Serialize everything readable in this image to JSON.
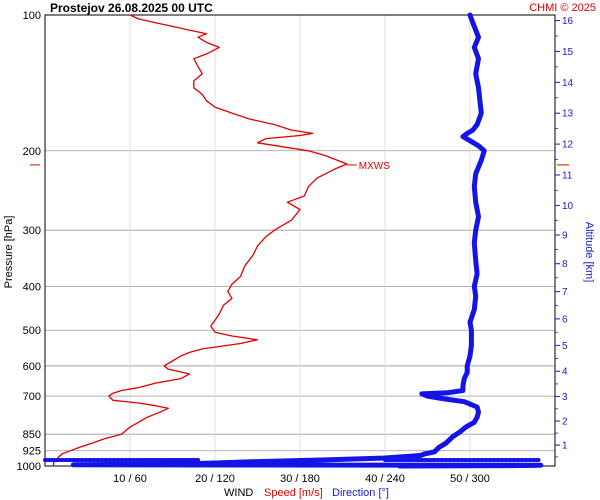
{
  "chart_data": {
    "type": "line",
    "title": "Prostejov    26.08.2025 00 UTC",
    "credit": "CHMI © 2025",
    "ylabel_left": "Pressure [hPa]",
    "ylabel_right": "Altitude [km]",
    "footer": {
      "wind": "WIND",
      "speed": "Speed [m/s]",
      "direction": "Direction [°]"
    },
    "pressure_ticks": [
      100,
      200,
      300,
      400,
      500,
      600,
      700,
      850,
      925,
      1000
    ],
    "pressure_range": [
      100,
      1000
    ],
    "altitude_ticks": [
      1,
      2,
      3,
      4,
      5,
      6,
      7,
      8,
      9,
      10,
      11,
      12,
      13,
      14,
      15,
      16
    ],
    "x_ticks": [
      {
        "speed": 10,
        "label": "10 / 60"
      },
      {
        "speed": 20,
        "label": "20 / 120"
      },
      {
        "speed": 30,
        "label": "30 / 180"
      },
      {
        "speed": 40,
        "label": "40 / 240"
      },
      {
        "speed": 50,
        "label": "50 / 300"
      }
    ],
    "speed_range": [
      0,
      60
    ],
    "direction_range": [
      0,
      360
    ],
    "annotation": {
      "label": "MXWS",
      "pressure": 215,
      "speed": 35.5
    },
    "series": [
      {
        "name": "Speed [m/s]",
        "color": "#e00000",
        "points": [
          [
            1000,
            1
          ],
          [
            985,
            1
          ],
          [
            960,
            1.5
          ],
          [
            940,
            2
          ],
          [
            925,
            3
          ],
          [
            910,
            4
          ],
          [
            890,
            5.5
          ],
          [
            870,
            7
          ],
          [
            850,
            9
          ],
          [
            820,
            10
          ],
          [
            800,
            11
          ],
          [
            780,
            12
          ],
          [
            760,
            13.5
          ],
          [
            745,
            14.5
          ],
          [
            735,
            13
          ],
          [
            725,
            11
          ],
          [
            715,
            8
          ],
          [
            700,
            7.5
          ],
          [
            690,
            8
          ],
          [
            680,
            9
          ],
          [
            670,
            11
          ],
          [
            655,
            13
          ],
          [
            640,
            16
          ],
          [
            625,
            17
          ],
          [
            610,
            14.5
          ],
          [
            600,
            14
          ],
          [
            585,
            15
          ],
          [
            570,
            16
          ],
          [
            560,
            17
          ],
          [
            550,
            18.5
          ],
          [
            545,
            20
          ],
          [
            535,
            23
          ],
          [
            525,
            25
          ],
          [
            515,
            22
          ],
          [
            505,
            20
          ],
          [
            490,
            19.5
          ],
          [
            475,
            20
          ],
          [
            460,
            20.5
          ],
          [
            440,
            21
          ],
          [
            425,
            22
          ],
          [
            410,
            21.5
          ],
          [
            395,
            22
          ],
          [
            380,
            23
          ],
          [
            360,
            23.5
          ],
          [
            340,
            24.5
          ],
          [
            325,
            25
          ],
          [
            310,
            26
          ],
          [
            300,
            27
          ],
          [
            285,
            29
          ],
          [
            270,
            30
          ],
          [
            260,
            28.5
          ],
          [
            252,
            30.5
          ],
          [
            240,
            31
          ],
          [
            230,
            32
          ],
          [
            220,
            34
          ],
          [
            214,
            35.5
          ],
          [
            205,
            33
          ],
          [
            200,
            31
          ],
          [
            196,
            28
          ],
          [
            192,
            25
          ],
          [
            188,
            26
          ],
          [
            185,
            30
          ],
          [
            183,
            31.5
          ],
          [
            180,
            29
          ],
          [
            175,
            27
          ],
          [
            170,
            24
          ],
          [
            165,
            22
          ],
          [
            160,
            20
          ],
          [
            155,
            19
          ],
          [
            150,
            18.5
          ],
          [
            145,
            17.5
          ],
          [
            140,
            17.5
          ],
          [
            135,
            18.5
          ],
          [
            130,
            18
          ],
          [
            125,
            17.5
          ],
          [
            122,
            19
          ],
          [
            118,
            20.5
          ],
          [
            115,
            19
          ],
          [
            112,
            18
          ],
          [
            110,
            19
          ],
          [
            108,
            17
          ],
          [
            106,
            15
          ],
          [
            104,
            13
          ],
          [
            102,
            11
          ],
          [
            100,
            10
          ]
        ]
      },
      {
        "name": "Direction [°]",
        "color": "#1414e6",
        "points": [
          [
            1000,
            250
          ],
          [
            998,
            330
          ],
          [
            996,
            350
          ],
          [
            994,
            20
          ],
          [
            992,
            60
          ],
          [
            990,
            90
          ],
          [
            985,
            120
          ],
          [
            978,
            150
          ],
          [
            970,
            195
          ],
          [
            960,
            240
          ],
          [
            948,
            265
          ],
          [
            940,
            268
          ],
          [
            930,
            275
          ],
          [
            910,
            278
          ],
          [
            890,
            283
          ],
          [
            860,
            288
          ],
          [
            840,
            293
          ],
          [
            820,
            297
          ],
          [
            800,
            303
          ],
          [
            780,
            305
          ],
          [
            760,
            306
          ],
          [
            740,
            305
          ],
          [
            720,
            296
          ],
          [
            710,
            282
          ],
          [
            700,
            270
          ],
          [
            692,
            266
          ],
          [
            688,
            284
          ],
          [
            680,
            295
          ],
          [
            665,
            295
          ],
          [
            640,
            296
          ],
          [
            620,
            298
          ],
          [
            600,
            298
          ],
          [
            570,
            300
          ],
          [
            540,
            301
          ],
          [
            500,
            301
          ],
          [
            480,
            300
          ],
          [
            450,
            303
          ],
          [
            420,
            304
          ],
          [
            400,
            303
          ],
          [
            375,
            305
          ],
          [
            350,
            304
          ],
          [
            320,
            303
          ],
          [
            300,
            304
          ],
          [
            280,
            306
          ],
          [
            260,
            304
          ],
          [
            240,
            303
          ],
          [
            225,
            304
          ],
          [
            210,
            308
          ],
          [
            200,
            310
          ],
          [
            195,
            306
          ],
          [
            190,
            300
          ],
          [
            186,
            295
          ],
          [
            183,
            298
          ],
          [
            180,
            302
          ],
          [
            175,
            305
          ],
          [
            165,
            308
          ],
          [
            155,
            307
          ],
          [
            145,
            306
          ],
          [
            135,
            304
          ],
          [
            125,
            306
          ],
          [
            118,
            303
          ],
          [
            112,
            306
          ],
          [
            108,
            304
          ],
          [
            104,
            302
          ],
          [
            100,
            300
          ]
        ]
      }
    ],
    "surface_marks": [
      {
        "label": "speed-zero",
        "pressure": 1000,
        "from_speed": 0,
        "to_speed": 18,
        "color": "#1414e6"
      },
      {
        "label": "direction-surface",
        "pressure": 1000,
        "from_dir": 240,
        "to_dir": 350,
        "color": "#1414e6"
      }
    ]
  }
}
